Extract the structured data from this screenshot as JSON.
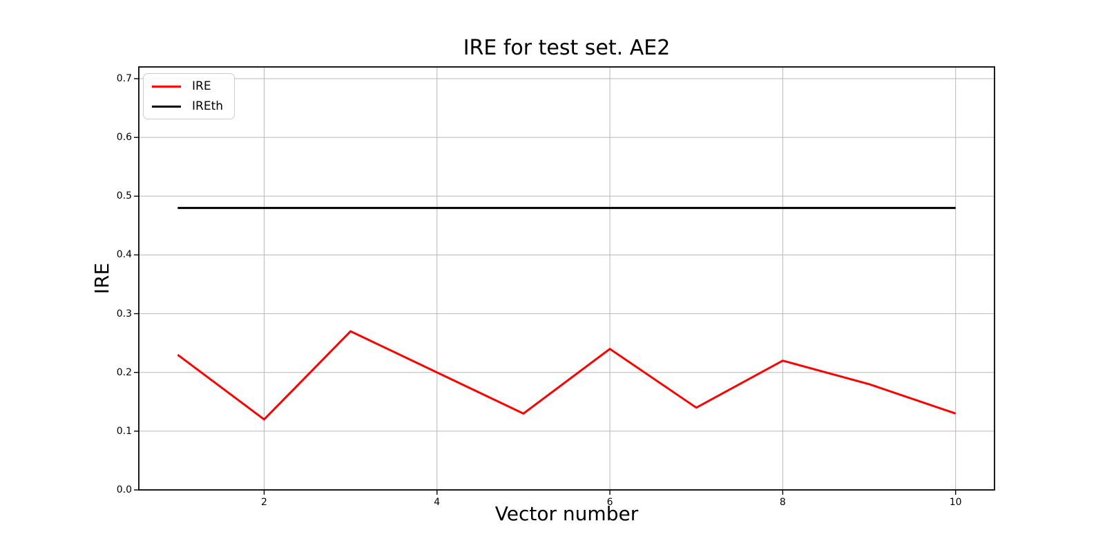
{
  "chart_data": {
    "type": "line",
    "title": "IRE for test set. AE2",
    "xlabel": "Vector number",
    "ylabel": "IRE",
    "x": [
      1,
      2,
      3,
      4,
      5,
      6,
      7,
      8,
      9,
      10
    ],
    "series": [
      {
        "name": "IRE",
        "color": "#ff0000",
        "linewidth": 3,
        "values": [
          0.23,
          0.12,
          0.27,
          0.2,
          0.13,
          0.24,
          0.14,
          0.22,
          0.18,
          0.13
        ]
      },
      {
        "name": "IREth",
        "color": "#000000",
        "linewidth": 3,
        "values": [
          0.48,
          0.48,
          0.48,
          0.48,
          0.48,
          0.48,
          0.48,
          0.48,
          0.48,
          0.48
        ]
      }
    ],
    "xlim": [
      0.55,
      10.45
    ],
    "ylim": [
      0,
      0.72
    ],
    "xticks": [
      2,
      4,
      6,
      8,
      10
    ],
    "xtick_labels": [
      "2",
      "4",
      "6",
      "8",
      "10"
    ],
    "yticks": [
      0.0,
      0.1,
      0.2,
      0.3,
      0.4,
      0.5,
      0.6,
      0.7
    ],
    "ytick_labels": [
      "0.0",
      "0.1",
      "0.2",
      "0.3",
      "0.4",
      "0.5",
      "0.6",
      "0.7"
    ],
    "grid": true,
    "grid_color": "#b8b8b8",
    "spine_color": "#000000",
    "background": "#ffffff",
    "legend": {
      "position": "upper left",
      "entries": [
        {
          "label": "IRE",
          "color": "#ff0000"
        },
        {
          "label": "IREth",
          "color": "#000000"
        }
      ]
    }
  }
}
